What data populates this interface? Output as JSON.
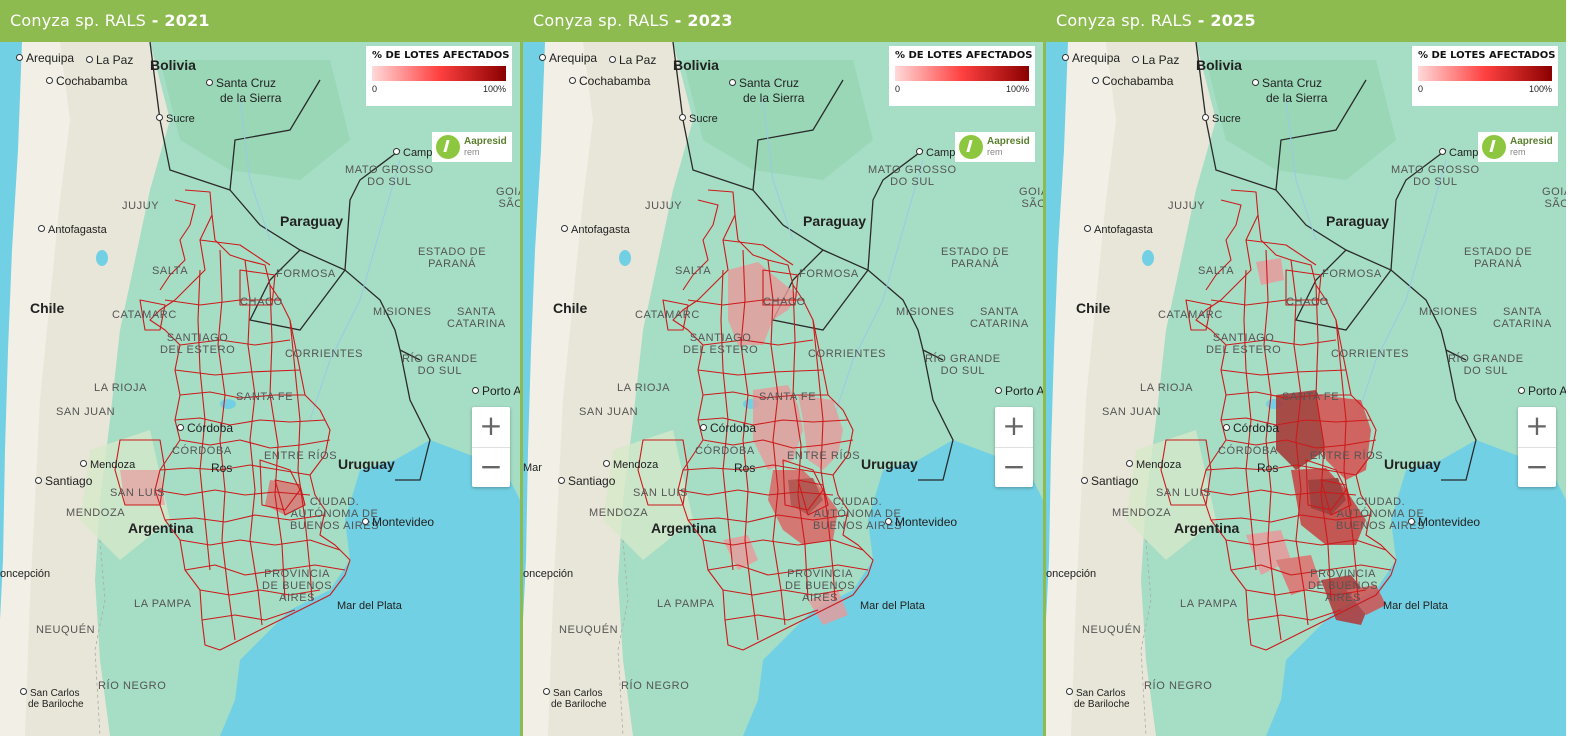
{
  "legend": {
    "title": "% DE LOTES AFECTADOS",
    "min": "0",
    "max": "100%"
  },
  "logo": {
    "name": "Aapresid",
    "sub": "rem"
  },
  "zoom": {
    "plus": "+",
    "minus": "−"
  },
  "panels": [
    {
      "title_prefix": "Conyza sp. RALS",
      "title_year": " - 2021"
    },
    {
      "title_prefix": "Conyza sp. RALS",
      "title_year": " - 2023"
    },
    {
      "title_prefix": "Conyza sp. RALS",
      "title_year": " - 2025"
    }
  ],
  "labels": {
    "arequipa": "Arequipa",
    "la_paz": "La Paz",
    "bolivia": "Bolivia",
    "cochabamba": "Cochabamba",
    "santa_cruz_1": "Santa Cruz",
    "santa_cruz_2": "de la Sierra",
    "sucre": "Sucre",
    "campo": "Campo",
    "mato_grosso_1": "MATO GROSSO",
    "mato_grosso_2": "DO SUL",
    "goia": "GOIÁ",
    "sao": "SÃO",
    "jujuy": "JUJUY",
    "antofagasta": "Antofagasta",
    "paraguay": "Paraguay",
    "salta": "SALTA",
    "formosa": "FORMOSA",
    "estado_parana_1": "ESTADO DE",
    "estado_parana_2": "PARANÁ",
    "chile": "Chile",
    "catamarca": "CATAMARC",
    "chaco": "CHACO",
    "misiones": "MISIONES",
    "santa_catarina_1": "SANTA",
    "santa_catarina_2": "CATARINA",
    "santiago_estero_1": "SANTIAGO",
    "santiago_estero_2": "DEL ESTERO",
    "corrientes": "CORRIENTES",
    "rio_grande_1": "RÍO GRANDE",
    "rio_grande_2": "DO SUL",
    "la_rioja": "LA RIOJA",
    "porto_a": "Porto A",
    "san_juan": "SAN JUAN",
    "santa_fe": "SANTA FE",
    "cordoba_city": "Córdoba",
    "cordoba_prov": "CÓRDOBA",
    "rosario": "Ros",
    "entre_rios": "ENTRE RÍOS",
    "uruguay": "Uruguay",
    "mendoza_city": "Mendoza",
    "santiago": "Santiago",
    "san_luis": "SAN LUIS",
    "caba_1": "CIUDAD.",
    "caba_2": "AUTÓNOMA DE",
    "caba_3": "BUENOS AIRES",
    "montevideo": "Montevideo",
    "mendoza_prov": "MENDOZA",
    "argentina": "Argentina",
    "concepcion": "oncepción",
    "prov_ba_1": "PROVINCIA",
    "prov_ba_2": "DE BUENOS",
    "prov_ba_3": "AIRES",
    "la_pampa": "LA PAMPA",
    "mar_del_plata": "Mar del Plata",
    "neuquen": "NEUQUÉN",
    "rio_negro": "RÍO NEGRO",
    "bariloche_1": "San Carlos",
    "bariloche_2": "de Bariloche",
    "mar": "Mar"
  },
  "colors": {
    "header": "#8dbb4f",
    "water": "#71d0e3",
    "land": "#a9e1c9",
    "boundary": "#cc1a1a",
    "affected_light": "#ec9a9a",
    "affected_mid": "#e05a5a",
    "affected_dark": "#a52a2a"
  }
}
